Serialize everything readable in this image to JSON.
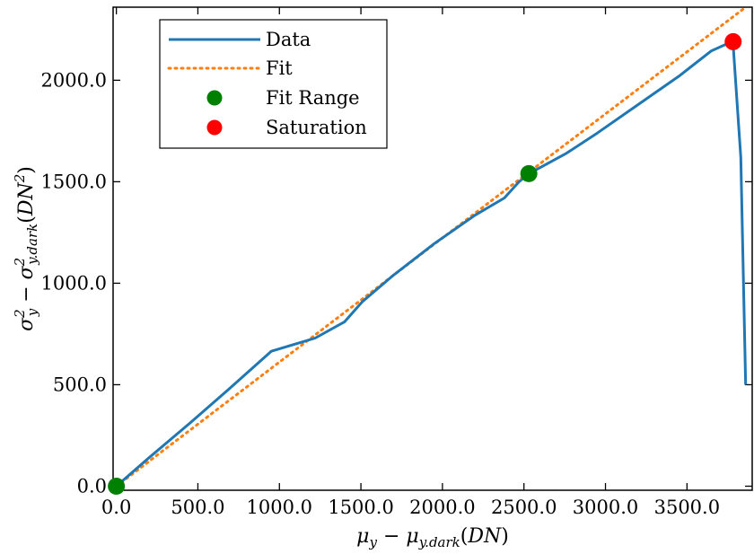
{
  "chart_data": {
    "type": "line",
    "title": "",
    "xlabel": "μy − μy.dark(DN)",
    "ylabel": "σ²y − σ²y.dark(DN²)",
    "xlim": [
      -20,
      3900
    ],
    "ylim": [
      -20,
      2360
    ],
    "xticks": [
      0,
      500,
      1000,
      1500,
      2000,
      2500,
      3000,
      3500
    ],
    "xtick_labels": [
      "0.0",
      "500.0",
      "1000.0",
      "1500.0",
      "2000.0",
      "2500.0",
      "3000.0",
      "3500.0"
    ],
    "yticks": [
      0,
      500,
      1000,
      1500,
      2000
    ],
    "ytick_labels": [
      "0.0",
      "500.0",
      "1000.0",
      "1500.0",
      "2000.0"
    ],
    "grid": false,
    "legend": {
      "placement": "top-left",
      "entries": [
        "Data",
        "Fit",
        "Fit Range",
        "Saturation"
      ]
    },
    "colors": {
      "data": "#1f77b4",
      "fit": "#ff7f0e",
      "fit_range": "#008000",
      "saturation": "#ff0000"
    },
    "series": [
      {
        "name": "Data",
        "style": "solid",
        "x": [
          0,
          200,
          450,
          700,
          950,
          1220,
          1400,
          1510,
          1700,
          1950,
          2200,
          2380,
          2470,
          2530,
          2760,
          2950,
          3200,
          3450,
          3650,
          3760,
          3783,
          3830,
          3860
        ],
        "y": [
          0,
          140,
          310,
          485,
          665,
          730,
          810,
          910,
          1040,
          1195,
          1335,
          1420,
          1500,
          1540,
          1640,
          1740,
          1880,
          2020,
          2145,
          2185,
          2180,
          1620,
          500
        ]
      },
      {
        "name": "Fit",
        "style": "dotted",
        "x": [
          0,
          3860
        ],
        "y": [
          0,
          2360
        ]
      },
      {
        "name": "Fit Range",
        "style": "marker",
        "x": [
          0,
          2530
        ],
        "y": [
          0,
          1540
        ]
      },
      {
        "name": "Saturation",
        "style": "marker",
        "x": [
          3783
        ],
        "y": [
          2190
        ]
      }
    ]
  }
}
